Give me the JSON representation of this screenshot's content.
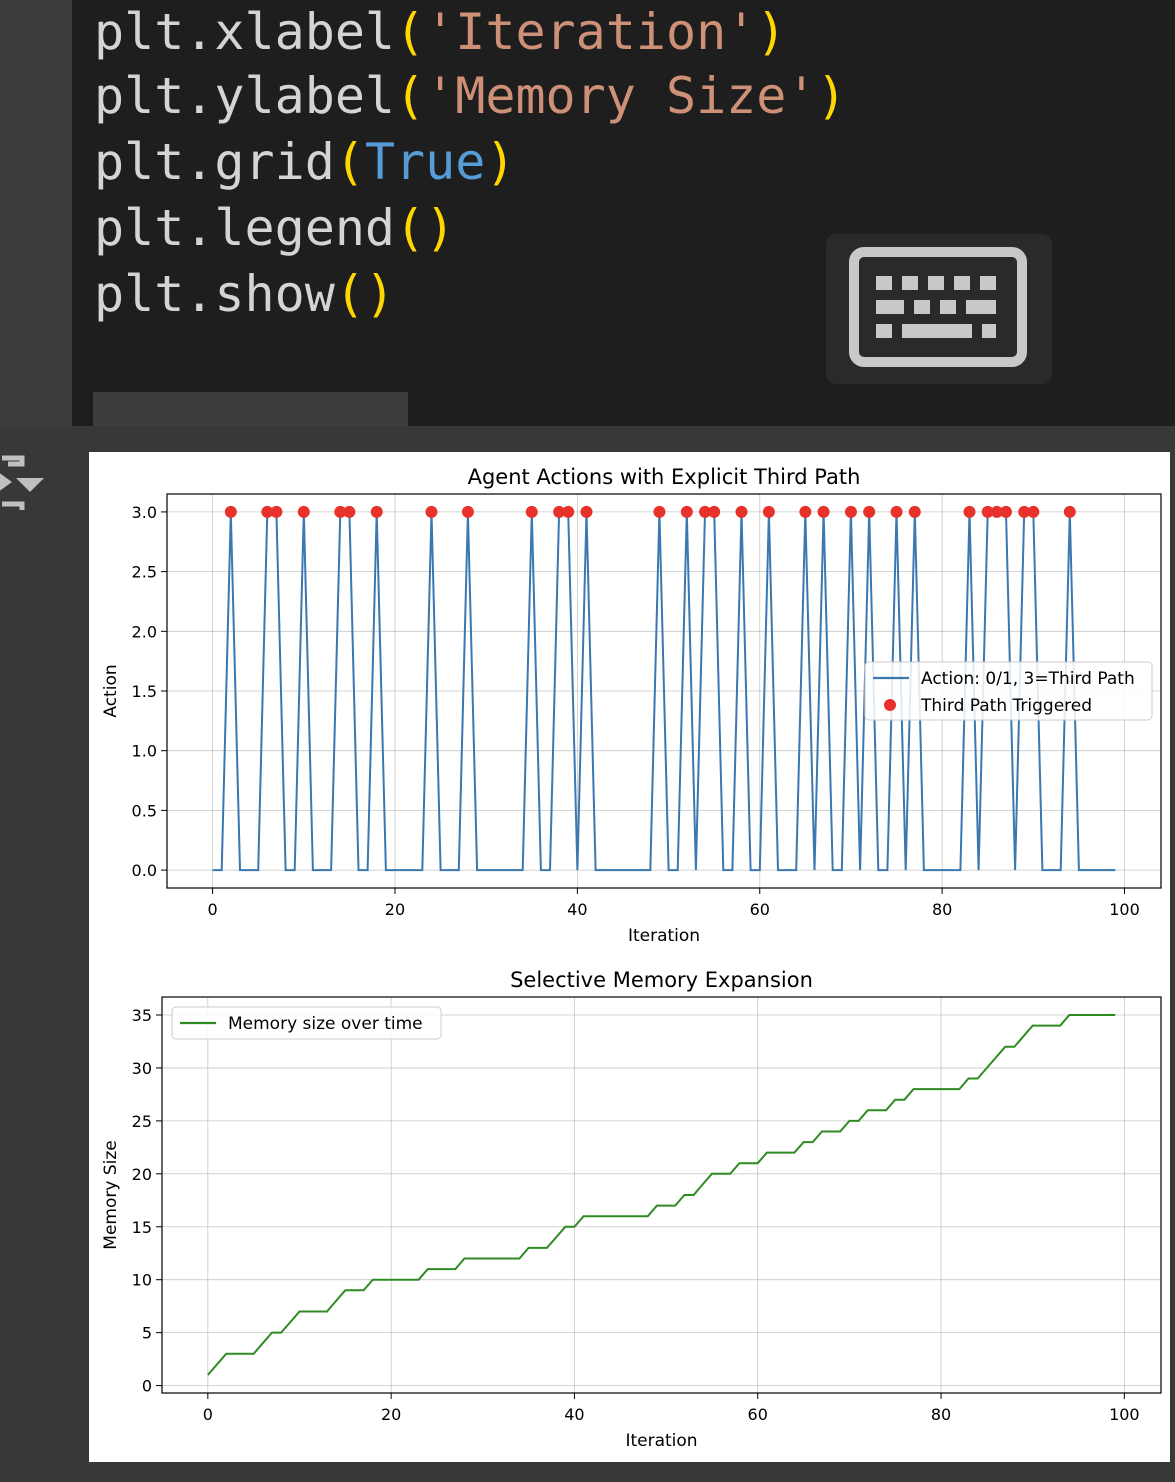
{
  "code": {
    "lines": [
      [
        {
          "t": "plt.xlabel",
          "c": "plain"
        },
        {
          "t": "(",
          "c": "paren"
        },
        {
          "t": "'Iteration'",
          "c": "str"
        },
        {
          "t": ")",
          "c": "paren"
        }
      ],
      [
        {
          "t": "plt.ylabel",
          "c": "plain"
        },
        {
          "t": "(",
          "c": "paren"
        },
        {
          "t": "'Memory Size'",
          "c": "str"
        },
        {
          "t": ")",
          "c": "paren"
        }
      ],
      [
        {
          "t": "plt.grid",
          "c": "plain"
        },
        {
          "t": "(",
          "c": "paren"
        },
        {
          "t": "True",
          "c": "kw"
        },
        {
          "t": ")",
          "c": "paren"
        }
      ],
      [
        {
          "t": "plt.legend",
          "c": "plain"
        },
        {
          "t": "()",
          "c": "paren"
        }
      ],
      [
        {
          "t": "plt.show",
          "c": "plain"
        },
        {
          "t": "()",
          "c": "paren"
        }
      ]
    ]
  },
  "toolbar": {
    "keyboard_icon": "keyboard-icon",
    "output_toggle_icon": "output-toggle-icon"
  },
  "colors": {
    "action_line": "#3b78b0",
    "trigger_dot": "#e8312a",
    "memory_line": "#2e8b22"
  },
  "chart_data": [
    {
      "type": "line",
      "title": "Agent Actions with Explicit Third Path",
      "xlabel": "Iteration",
      "ylabel": "Action",
      "xlim": [
        -5,
        104
      ],
      "ylim": [
        -0.15,
        3.15
      ],
      "xticks": [
        0,
        20,
        40,
        60,
        80,
        100
      ],
      "yticks": [
        0.0,
        0.5,
        1.0,
        1.5,
        2.0,
        2.5,
        3.0
      ],
      "grid": true,
      "legend": "center-right",
      "series": [
        {
          "name": "Action: 0/1, 3=Third Path",
          "type": "line",
          "color": "#3b78b0",
          "x": [
            0,
            1,
            2,
            3,
            4,
            5,
            6,
            7,
            8,
            9,
            10,
            11,
            12,
            13,
            14,
            15,
            16,
            17,
            18,
            19,
            20,
            21,
            22,
            23,
            24,
            25,
            26,
            27,
            28,
            29,
            30,
            31,
            32,
            33,
            34,
            35,
            36,
            37,
            38,
            39,
            40,
            41,
            42,
            43,
            44,
            45,
            46,
            47,
            48,
            49,
            50,
            51,
            52,
            53,
            54,
            55,
            56,
            57,
            58,
            59,
            60,
            61,
            62,
            63,
            64,
            65,
            66,
            67,
            68,
            69,
            70,
            71,
            72,
            73,
            74,
            75,
            76,
            77,
            78,
            79,
            80,
            81,
            82,
            83,
            84,
            85,
            86,
            87,
            88,
            89,
            90,
            91,
            92,
            93,
            94,
            95,
            96,
            97,
            98,
            99
          ],
          "y": [
            0,
            0,
            3,
            0,
            0,
            0,
            3,
            3,
            0,
            0,
            3,
            0,
            0,
            0,
            3,
            3,
            0,
            0,
            3,
            0,
            0,
            0,
            0,
            0,
            3,
            0,
            0,
            0,
            3,
            0,
            0,
            0,
            0,
            0,
            0,
            3,
            0,
            0,
            3,
            3,
            0,
            3,
            0,
            0,
            0,
            0,
            0,
            0,
            0,
            3,
            0,
            0,
            3,
            0,
            3,
            3,
            0,
            0,
            3,
            0,
            0,
            3,
            0,
            0,
            0,
            3,
            0,
            3,
            0,
            0,
            3,
            0,
            3,
            0,
            0,
            3,
            0,
            3,
            0,
            0,
            0,
            0,
            0,
            3,
            0,
            3,
            3,
            3,
            0,
            3,
            3,
            0,
            0,
            0,
            3,
            0,
            0,
            0,
            0,
            0
          ]
        },
        {
          "name": "Third Path Triggered",
          "type": "scatter",
          "color": "#e8312a",
          "x": [
            2,
            6,
            7,
            10,
            14,
            15,
            18,
            24,
            28,
            35,
            38,
            39,
            41,
            49,
            52,
            54,
            55,
            58,
            61,
            65,
            67,
            70,
            72,
            75,
            77,
            83,
            85,
            86,
            87,
            89,
            90,
            94
          ],
          "y": [
            3,
            3,
            3,
            3,
            3,
            3,
            3,
            3,
            3,
            3,
            3,
            3,
            3,
            3,
            3,
            3,
            3,
            3,
            3,
            3,
            3,
            3,
            3,
            3,
            3,
            3,
            3,
            3,
            3,
            3,
            3,
            3
          ]
        }
      ]
    },
    {
      "type": "line",
      "title": "Selective Memory Expansion",
      "xlabel": "Iteration",
      "ylabel": "Memory Size",
      "xlim": [
        -5,
        104
      ],
      "ylim": [
        -0.7,
        36.7
      ],
      "xticks": [
        0,
        20,
        40,
        60,
        80,
        100
      ],
      "yticks": [
        0,
        5,
        10,
        15,
        20,
        25,
        30,
        35
      ],
      "grid": true,
      "legend": "top-left",
      "series": [
        {
          "name": "Memory size over time",
          "type": "line",
          "color": "#2e8b22",
          "x": [
            0,
            1,
            2,
            3,
            4,
            5,
            6,
            7,
            8,
            9,
            10,
            11,
            12,
            13,
            14,
            15,
            16,
            17,
            18,
            19,
            20,
            21,
            22,
            23,
            24,
            25,
            26,
            27,
            28,
            29,
            30,
            31,
            32,
            33,
            34,
            35,
            36,
            37,
            38,
            39,
            40,
            41,
            42,
            43,
            44,
            45,
            46,
            47,
            48,
            49,
            50,
            51,
            52,
            53,
            54,
            55,
            56,
            57,
            58,
            59,
            60,
            61,
            62,
            63,
            64,
            65,
            66,
            67,
            68,
            69,
            70,
            71,
            72,
            73,
            74,
            75,
            76,
            77,
            78,
            79,
            80,
            81,
            82,
            83,
            84,
            85,
            86,
            87,
            88,
            89,
            90,
            91,
            92,
            93,
            94,
            95,
            96,
            97,
            98,
            99
          ],
          "y": [
            1,
            2,
            3,
            3,
            3,
            3,
            4,
            5,
            5,
            6,
            7,
            7,
            7,
            7,
            8,
            9,
            9,
            9,
            10,
            10,
            10,
            10,
            10,
            10,
            11,
            11,
            11,
            11,
            12,
            12,
            12,
            12,
            12,
            12,
            12,
            13,
            13,
            13,
            14,
            15,
            15,
            16,
            16,
            16,
            16,
            16,
            16,
            16,
            16,
            17,
            17,
            17,
            18,
            18,
            19,
            20,
            20,
            20,
            21,
            21,
            21,
            22,
            22,
            22,
            22,
            23,
            23,
            24,
            24,
            24,
            25,
            25,
            26,
            26,
            26,
            27,
            27,
            28,
            28,
            28,
            28,
            28,
            28,
            29,
            29,
            30,
            31,
            32,
            32,
            33,
            34,
            34,
            34,
            34,
            35,
            35,
            35,
            35,
            35,
            35
          ]
        }
      ]
    }
  ]
}
